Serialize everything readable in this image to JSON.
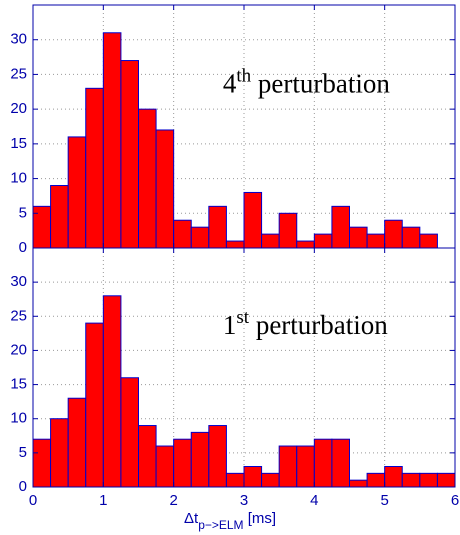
{
  "chart_data": [
    {
      "type": "histogram",
      "bins": [
        0,
        0.25,
        0.5,
        0.75,
        1,
        1.25,
        1.5,
        1.75,
        2,
        2.25,
        2.5,
        2.75,
        3,
        3.25,
        3.5,
        3.75,
        4,
        4.25,
        4.5,
        4.75,
        5,
        5.25,
        5.5,
        5.75
      ],
      "values": [
        6,
        9,
        16,
        23,
        31,
        27,
        20,
        17,
        4,
        3,
        6,
        1,
        8,
        2,
        5,
        1,
        2,
        6,
        3,
        2,
        4,
        3,
        2
      ],
      "color": "#ff0000",
      "edgecolor": "#0000cc",
      "annotation": [
        "4",
        "th",
        " perturbation"
      ],
      "xlim": [
        0,
        6
      ],
      "xticks": [
        0,
        1,
        2,
        3,
        4,
        5,
        6
      ],
      "ylim": [
        0,
        35
      ],
      "yticks": [
        0,
        5,
        10,
        15,
        20,
        25,
        30
      ],
      "grid": true
    },
    {
      "type": "histogram",
      "bins": [
        0,
        0.25,
        0.5,
        0.75,
        1,
        1.25,
        1.5,
        1.75,
        2,
        2.25,
        2.5,
        2.75,
        3,
        3.25,
        3.5,
        3.75,
        4,
        4.25,
        4.5,
        4.75,
        5,
        5.25,
        5.5,
        5.75,
        6
      ],
      "values": [
        7,
        10,
        13,
        24,
        28,
        16,
        9,
        6,
        7,
        8,
        9,
        2,
        3,
        2,
        6,
        6,
        7,
        7,
        1,
        2,
        3,
        2,
        2,
        2
      ],
      "color": "#ff0000",
      "edgecolor": "#0000cc",
      "annotation": [
        "1",
        "st",
        " perturbation"
      ],
      "xlabel": [
        "Δt",
        "p−>ELM",
        " [ms]"
      ],
      "xlim": [
        0,
        6
      ],
      "xticks": [
        0,
        1,
        2,
        3,
        4,
        5,
        6
      ],
      "ylim": [
        0,
        35
      ],
      "yticks": [
        0,
        5,
        10,
        15,
        20,
        25,
        30
      ],
      "grid": true
    }
  ]
}
